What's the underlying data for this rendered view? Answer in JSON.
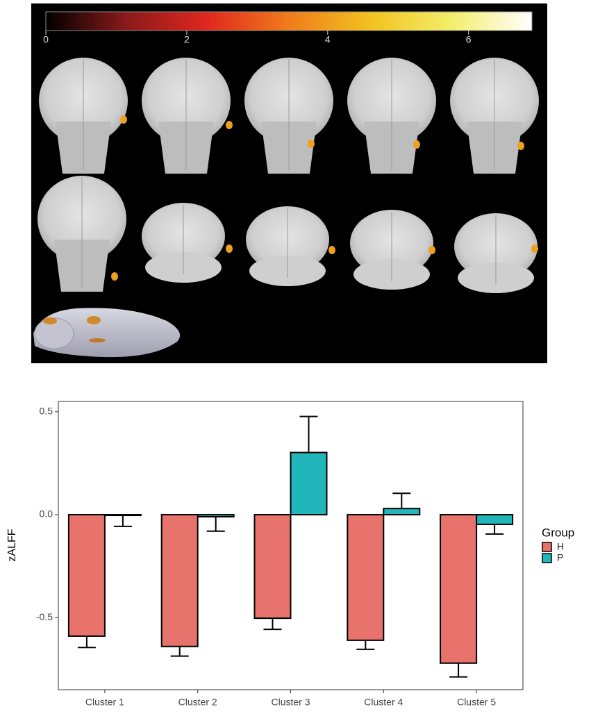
{
  "chart_data": [
    {
      "type": "colorbar",
      "xlim": [
        0,
        6.9
      ],
      "xticks": [
        0,
        2,
        4,
        6
      ],
      "colors": [
        "#000000",
        "#8b1a1a",
        "#e0281e",
        "#f07c1c",
        "#f2c21f",
        "#f3ee6a",
        "#ffffff"
      ]
    },
    {
      "type": "bar",
      "categories": [
        "Cluster 1",
        "Cluster 2",
        "Cluster 3",
        "Cluster 4",
        "Cluster 5"
      ],
      "y_label": "zALFF",
      "legend_title": "Group",
      "series": [
        {
          "name": "H",
          "color": "#e8736c",
          "values": [
            -0.59,
            -0.64,
            -0.503,
            -0.61,
            -0.721
          ],
          "errors": [
            0.055,
            0.047,
            0.054,
            0.044,
            0.067
          ]
        },
        {
          "name": "P",
          "color": "#20b6ba",
          "values": [
            -0.003,
            -0.01,
            0.302,
            0.03,
            -0.047
          ],
          "errors": [
            0.054,
            0.07,
            0.175,
            0.074,
            0.047
          ]
        }
      ],
      "ylim": [
        -0.85,
        0.55
      ],
      "yticks": [
        {
          "value": -0.5,
          "label": "-0.5"
        },
        {
          "value": 0,
          "label": "0.0"
        },
        {
          "value": 0.5,
          "label": "0.5"
        }
      ]
    }
  ]
}
